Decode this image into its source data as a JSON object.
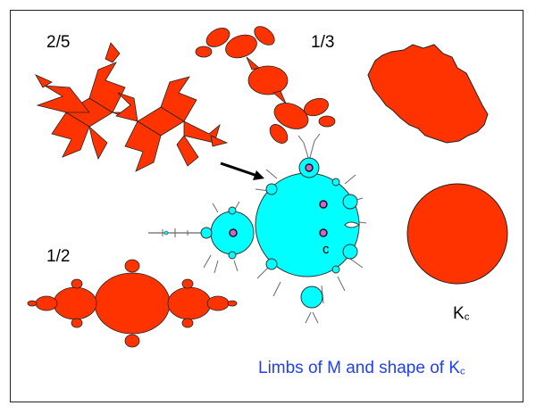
{
  "slide": {
    "title": "Limbs of M and shape of K",
    "title_sub": "c",
    "labels": {
      "two_fifths": "2/5",
      "one_third": "1/3",
      "one_half": "1/2",
      "c_point": "c",
      "kc_main": "K",
      "kc_sub": "c"
    }
  },
  "colors": {
    "julia_fill": "#ff3300",
    "mandelbrot_fill": "#00ffff",
    "marker_fill": "#cc66cc",
    "title_text": "#1f3fff",
    "outline": "#222222"
  },
  "icons": {
    "arrow": "black-arrow-icon"
  }
}
